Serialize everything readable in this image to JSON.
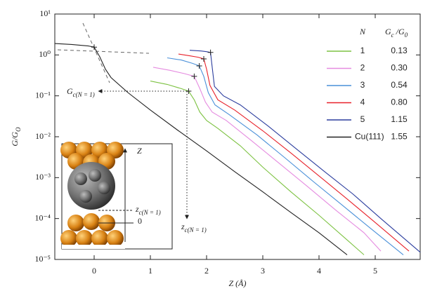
{
  "chart_data": {
    "type": "line",
    "log_y": true,
    "x_label": "Z (Å)",
    "y_label": [
      "G/G",
      "O"
    ],
    "xlim": [
      -0.7,
      5.8
    ],
    "xticks": [
      0,
      1,
      2,
      3,
      4,
      5
    ],
    "ylim": [
      1e-05,
      10
    ],
    "yticks": [
      {
        "value": 10,
        "label": "10¹"
      },
      {
        "value": 1,
        "label": "10⁰"
      },
      {
        "value": 0.1,
        "label": "10⁻¹"
      },
      {
        "value": 0.01,
        "label": "10⁻²"
      },
      {
        "value": 0.001,
        "label": "10⁻³"
      },
      {
        "value": 0.0001,
        "label": "10⁻⁴"
      },
      {
        "value": 1e-05,
        "label": "10⁻⁵"
      }
    ],
    "legend_header_n": "N",
    "legend_header_gc": [
      "G",
      "c",
      " /G",
      "0"
    ],
    "series": [
      {
        "name": "1",
        "color": "#7dc242",
        "zc": 1.68,
        "gc": 0.13,
        "x": [
          1.0,
          1.3,
          1.55,
          1.68,
          1.78,
          1.88,
          2.0,
          2.2,
          2.6,
          3.0,
          3.5,
          4.0,
          4.5,
          4.8
        ],
        "y": [
          0.23,
          0.19,
          0.15,
          0.13,
          0.08,
          0.04,
          0.025,
          0.016,
          0.006,
          0.0018,
          0.00045,
          0.00012,
          3e-05,
          1.3e-05
        ]
      },
      {
        "name": "2",
        "color": "#e58be0",
        "zc": 1.78,
        "gc": {
          "value": 0.3,
          "label": "0.30"
        },
        "x": [
          1.05,
          1.35,
          1.6,
          1.78,
          1.88,
          1.98,
          2.1,
          2.35,
          2.8,
          3.3,
          3.8,
          4.3,
          4.8,
          5.1
        ],
        "y": [
          0.5,
          0.42,
          0.35,
          0.3,
          0.15,
          0.07,
          0.04,
          0.025,
          0.008,
          0.0022,
          0.0006,
          0.00016,
          4.5e-05,
          1.6e-05
        ]
      },
      {
        "name": "3",
        "color": "#4a90d9",
        "zc": 1.87,
        "gc": 0.54,
        "x": [
          1.3,
          1.55,
          1.75,
          1.87,
          1.95,
          2.03,
          2.15,
          2.4,
          2.9,
          3.4,
          3.9,
          4.4,
          4.9,
          5.5
        ],
        "y": [
          0.85,
          0.75,
          0.62,
          0.54,
          0.3,
          0.12,
          0.06,
          0.035,
          0.011,
          0.003,
          0.0008,
          0.00022,
          6e-05,
          1.3e-05
        ]
      },
      {
        "name": "4",
        "color": "#e8212a",
        "zc": 1.95,
        "gc": {
          "value": 0.8,
          "label": "0.80"
        },
        "x": [
          1.5,
          1.7,
          1.85,
          1.95,
          2.0,
          2.06,
          2.2,
          2.5,
          3.0,
          3.5,
          4.0,
          4.5,
          5.0,
          5.6
        ],
        "y": [
          1.05,
          0.95,
          0.88,
          0.8,
          0.45,
          0.18,
          0.08,
          0.045,
          0.014,
          0.004,
          0.0011,
          0.0003,
          8e-05,
          1.6e-05
        ]
      },
      {
        "name": "5",
        "color": "#2b3d9e",
        "zc": 2.07,
        "gc": 1.15,
        "x": [
          1.7,
          1.9,
          2.0,
          2.07,
          2.1,
          2.14,
          2.3,
          2.6,
          3.1,
          3.6,
          4.1,
          4.6,
          5.1,
          5.8
        ],
        "y": [
          1.3,
          1.25,
          1.2,
          1.15,
          0.5,
          0.17,
          0.1,
          0.06,
          0.018,
          0.005,
          0.0014,
          0.0004,
          0.0001,
          1.5e-05
        ]
      },
      {
        "name": "Cu(111)",
        "color": "#222222",
        "zc": 0,
        "gc": 1.55,
        "x": [
          -0.7,
          -0.4,
          -0.1,
          0,
          0.1,
          0.2,
          0.3,
          0.6,
          1.0,
          1.5,
          2.0,
          2.5,
          3.0,
          3.5,
          4.0,
          4.5
        ],
        "y": [
          1.9,
          1.8,
          1.65,
          1.55,
          0.9,
          0.45,
          0.28,
          0.12,
          0.045,
          0.014,
          0.0045,
          0.0014,
          0.00045,
          0.00014,
          4.5e-05,
          1.3e-05
        ]
      }
    ],
    "annotation_gc": [
      "G",
      "c(N = 1)"
    ],
    "annotation_zc": [
      "z",
      "c(N = 1)"
    ],
    "inset": {
      "z_label": "Z",
      "zc_label": [
        "z",
        "c(N = 1)"
      ],
      "zero_label": "0"
    }
  }
}
